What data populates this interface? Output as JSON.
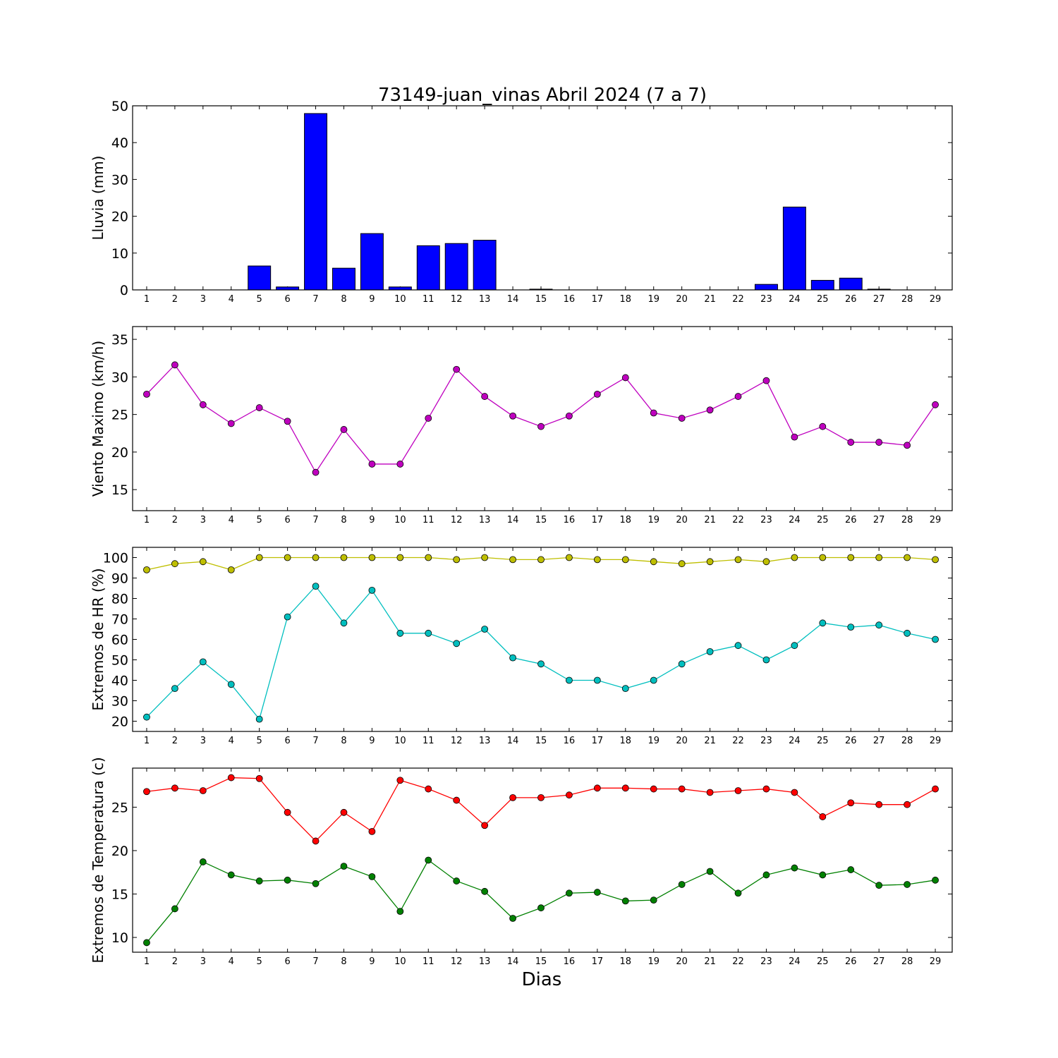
{
  "title": "73149-juan_vinas Abril 2024  (7 a 7)",
  "chart_data": [
    {
      "type": "bar",
      "ylabel": "Lluvia (mm)",
      "xlabel": "",
      "ylim": [
        0,
        50
      ],
      "yticks": [
        0,
        10,
        20,
        30,
        40,
        50
      ],
      "categories": [
        "1",
        "2",
        "3",
        "4",
        "5",
        "6",
        "7",
        "8",
        "9",
        "10",
        "11",
        "12",
        "13",
        "14",
        "15",
        "16",
        "17",
        "18",
        "19",
        "20",
        "21",
        "22",
        "23",
        "24",
        "25",
        "26",
        "27",
        "28",
        "29"
      ],
      "colors": {
        "bar": "#0000ff"
      },
      "values": [
        0,
        0,
        0,
        0,
        6.5,
        0.8,
        47.9,
        5.9,
        15.3,
        0.8,
        12.0,
        12.6,
        13.5,
        0,
        0.2,
        0,
        0,
        0,
        0,
        0,
        0,
        0,
        1.5,
        22.5,
        2.6,
        3.2,
        0.2,
        0,
        0
      ]
    },
    {
      "type": "line",
      "ylabel": "Viento Maximo (km/h)",
      "xlabel": "",
      "ylim": [
        12.2,
        36.7
      ],
      "yticks": [
        15,
        20,
        25,
        30,
        35
      ],
      "categories": [
        "1",
        "2",
        "3",
        "4",
        "5",
        "6",
        "7",
        "8",
        "9",
        "10",
        "11",
        "12",
        "13",
        "14",
        "15",
        "16",
        "17",
        "18",
        "19",
        "20",
        "21",
        "22",
        "23",
        "24",
        "25",
        "26",
        "27",
        "28",
        "29"
      ],
      "series": [
        {
          "color": "#bf00bf",
          "values": [
            27.7,
            31.6,
            26.3,
            23.8,
            25.9,
            24.1,
            17.3,
            23.0,
            18.4,
            18.4,
            24.5,
            31.0,
            27.4,
            24.8,
            23.4,
            24.8,
            27.7,
            29.9,
            25.2,
            24.5,
            25.6,
            27.4,
            29.5,
            22.0,
            23.4,
            21.3,
            21.3,
            20.9,
            26.3
          ]
        }
      ]
    },
    {
      "type": "line",
      "ylabel": "Extremos de HR (%)",
      "xlabel": "",
      "ylim": [
        15,
        105
      ],
      "yticks": [
        20,
        30,
        40,
        50,
        60,
        70,
        80,
        90,
        100
      ],
      "categories": [
        "1",
        "2",
        "3",
        "4",
        "5",
        "6",
        "7",
        "8",
        "9",
        "10",
        "11",
        "12",
        "13",
        "14",
        "15",
        "16",
        "17",
        "18",
        "19",
        "20",
        "21",
        "22",
        "23",
        "24",
        "25",
        "26",
        "27",
        "28",
        "29"
      ],
      "series": [
        {
          "color": "#bfbf00",
          "values": [
            94,
            97,
            98,
            94,
            100,
            100,
            100,
            100,
            100,
            100,
            100,
            99,
            100,
            99,
            99,
            100,
            99,
            99,
            98,
            97,
            98,
            99,
            98,
            100,
            100,
            100,
            100,
            100,
            99
          ]
        },
        {
          "color": "#00bfbf",
          "values": [
            22,
            36,
            49,
            38,
            21,
            71,
            86,
            68,
            84,
            63,
            63,
            58,
            65,
            51,
            48,
            40,
            40,
            36,
            40,
            48,
            54,
            57,
            50,
            57,
            68,
            66,
            67,
            63,
            60
          ]
        }
      ]
    },
    {
      "type": "line",
      "ylabel": "Extremos de Temperatura (c)",
      "xlabel": "Dias",
      "ylim": [
        8.3,
        29.5
      ],
      "yticks": [
        10,
        15,
        20,
        25
      ],
      "categories": [
        "1",
        "2",
        "3",
        "4",
        "5",
        "6",
        "7",
        "8",
        "9",
        "10",
        "11",
        "12",
        "13",
        "14",
        "15",
        "16",
        "17",
        "18",
        "19",
        "20",
        "21",
        "22",
        "23",
        "24",
        "25",
        "26",
        "27",
        "28",
        "29"
      ],
      "series": [
        {
          "color": "#ff0000",
          "values": [
            26.8,
            27.2,
            26.9,
            28.4,
            28.3,
            24.4,
            21.1,
            24.4,
            22.2,
            28.1,
            27.1,
            25.8,
            22.9,
            26.1,
            26.1,
            26.4,
            27.2,
            27.2,
            27.1,
            27.1,
            26.7,
            26.9,
            27.1,
            26.7,
            23.9,
            25.5,
            25.3,
            25.3,
            27.1
          ]
        },
        {
          "color": "#008000",
          "values": [
            9.4,
            13.3,
            18.7,
            17.2,
            16.5,
            16.6,
            16.2,
            18.2,
            17.0,
            13.0,
            18.9,
            16.5,
            15.3,
            12.2,
            13.4,
            15.1,
            15.2,
            14.2,
            14.3,
            16.1,
            17.6,
            15.1,
            17.2,
            18.0,
            17.2,
            17.8,
            16.0,
            16.1,
            16.6
          ]
        }
      ]
    }
  ]
}
